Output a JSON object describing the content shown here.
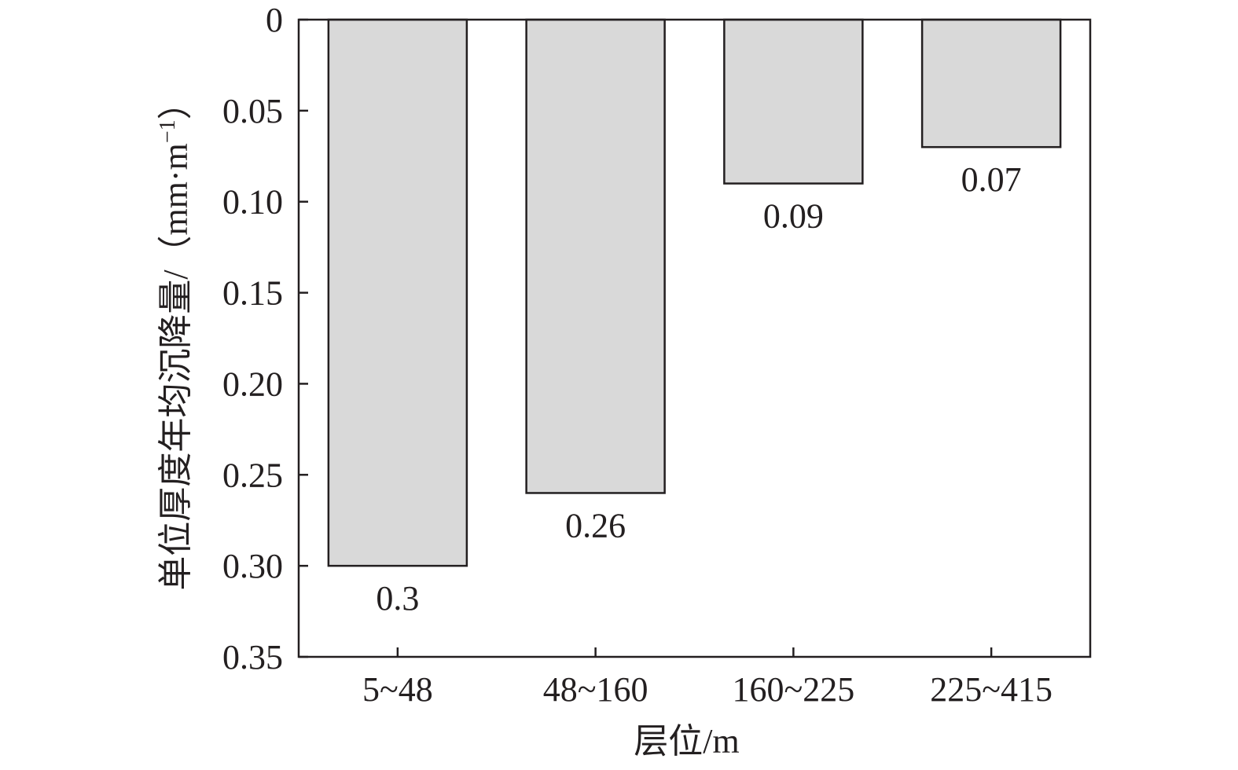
{
  "chart_data": {
    "type": "bar",
    "orientation": "vertical",
    "y_axis_inverted": true,
    "categories": [
      "5~48",
      "48~160",
      "160~225",
      "225~415"
    ],
    "values": [
      0.3,
      0.26,
      0.09,
      0.07
    ],
    "value_labels": [
      "0.3",
      "0.26",
      "0.09",
      "0.07"
    ],
    "xlabel": "层位/m",
    "ylabel": "单位厚度年均沉降量/（mm·m",
    "ylabel_superscript": "−1",
    "ylabel_close": "）",
    "ylim": [
      0,
      0.35
    ],
    "yticks": [
      0,
      0.05,
      0.1,
      0.15,
      0.2,
      0.25,
      0.3,
      0.35
    ],
    "ytick_labels": [
      "0",
      "0.05",
      "0.10",
      "0.15",
      "0.20",
      "0.25",
      "0.30",
      "0.35"
    ],
    "grid": false,
    "legend": "none",
    "bar_fill": "#d9d9d9",
    "bar_stroke": "#231f20"
  }
}
